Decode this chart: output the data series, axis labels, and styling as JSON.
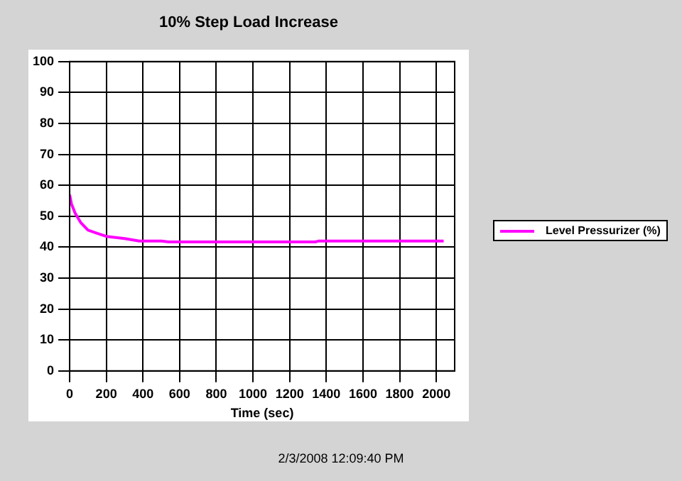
{
  "chart_data": {
    "type": "line",
    "title": "10% Step Load Increase",
    "xlabel": "Time (sec)",
    "annotations": [
      "2/3/2008 12:09:40 PM"
    ],
    "xlim": [
      0,
      2100
    ],
    "xticks": [
      0,
      200,
      400,
      600,
      800,
      1000,
      1200,
      1400,
      1600,
      1800,
      2000
    ],
    "ylim": [
      0,
      100
    ],
    "yticks": [
      0,
      10,
      20,
      30,
      40,
      50,
      60,
      70,
      80,
      90,
      100
    ],
    "grid": true,
    "legend": "right",
    "marker": "none",
    "line_style": "solid",
    "series": [
      {
        "name": "Level Pressurizer (%)",
        "color": "#ff00ff",
        "x": [
          0,
          10,
          30,
          60,
          100,
          150,
          200,
          300,
          380,
          500,
          540,
          1000,
          1340,
          1360,
          1700,
          2040
        ],
        "values": [
          57,
          54,
          51,
          48,
          45.5,
          44.5,
          43.5,
          42.8,
          42,
          42,
          41.7,
          41.7,
          41.7,
          42,
          42,
          42
        ]
      }
    ]
  }
}
